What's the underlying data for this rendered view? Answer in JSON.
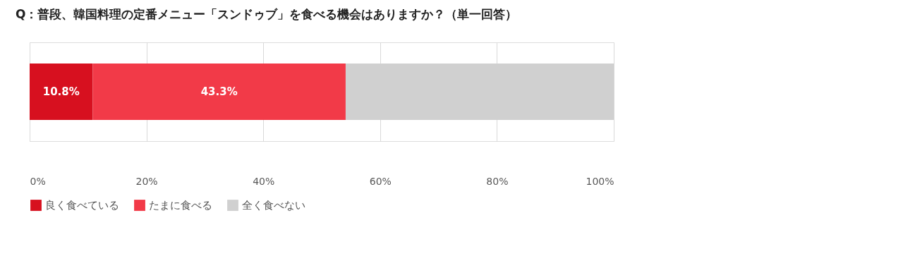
{
  "chart_data": {
    "type": "bar",
    "orientation": "horizontal",
    "stacked": true,
    "title": "Q：普段、韓国料理の定番メニュー「スンドゥブ」を食べる機会はありますか？（単一回答）",
    "categories": [
      null
    ],
    "series": [
      {
        "name": "良く食べている",
        "color": "#d7101f",
        "values": [
          10.8
        ],
        "value_labels": [
          "10.8%"
        ]
      },
      {
        "name": "たまに食べる",
        "color": "#f23a48",
        "values": [
          43.3
        ],
        "value_labels": [
          "43.3%"
        ]
      },
      {
        "name": "全く食べない",
        "color": "#d0d0d0",
        "values": [
          45.9
        ],
        "value_labels": [
          null
        ]
      }
    ],
    "xlim": [
      0,
      100
    ],
    "xticks": [
      {
        "value": 0,
        "label": "0%"
      },
      {
        "value": 20,
        "label": "20%"
      },
      {
        "value": 40,
        "label": "40%"
      },
      {
        "value": 60,
        "label": "60%"
      },
      {
        "value": 80,
        "label": "80%"
      },
      {
        "value": 100,
        "label": "100%"
      }
    ],
    "grid": "x",
    "legend": "bottom",
    "tick_labels": "x"
  }
}
